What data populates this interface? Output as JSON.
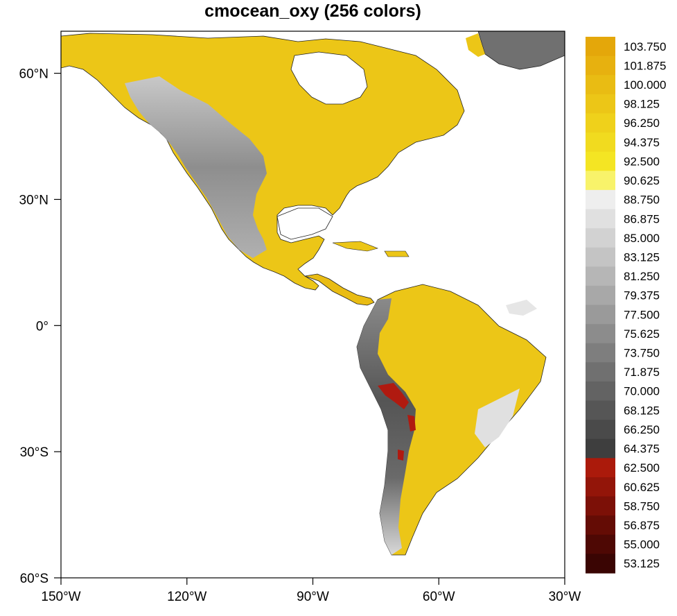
{
  "title": "cmocean_oxy (256 colors)",
  "map": {
    "projection": "cylindrical equidistant",
    "lon_range": [
      -150,
      -30
    ],
    "lat_range": [
      -60,
      70
    ],
    "x_ticks": [
      {
        "lon": -150,
        "label": "150°W"
      },
      {
        "lon": -120,
        "label": "120°W"
      },
      {
        "lon": -90,
        "label": "90°W"
      },
      {
        "lon": -60,
        "label": "60°W"
      },
      {
        "lon": -30,
        "label": "30°W"
      }
    ],
    "y_ticks": [
      {
        "lat": 60,
        "label": "60°N"
      },
      {
        "lat": 30,
        "label": "30°N"
      },
      {
        "lat": 0,
        "label": "0°"
      },
      {
        "lat": -30,
        "label": "30°S"
      },
      {
        "lat": -60,
        "label": "60°S"
      }
    ]
  },
  "colorbar": {
    "labels": [
      "103.750",
      "101.875",
      "100.000",
      "98.125",
      "96.250",
      "94.375",
      "92.500",
      "90.625",
      "88.750",
      "86.875",
      "85.000",
      "83.125",
      "81.250",
      "79.375",
      "77.500",
      "75.625",
      "73.750",
      "71.875",
      "70.000",
      "68.125",
      "66.250",
      "64.375",
      "62.500",
      "60.625",
      "58.750",
      "56.875",
      "55.000",
      "53.125"
    ],
    "colors": [
      "#e4a70a",
      "#e7b10f",
      "#e9bc13",
      "#ecc617",
      "#efd11b",
      "#f1db1f",
      "#f4e523",
      "#f8f36a",
      "#eeeeee",
      "#e0e0e0",
      "#d2d2d2",
      "#c4c4c4",
      "#b6b6b6",
      "#a8a8a8",
      "#9a9a9a",
      "#8c8c8c",
      "#7e7e7e",
      "#707070",
      "#636363",
      "#565656",
      "#4a4a4a",
      "#3e3e3e",
      "#ab1a0b",
      "#931509",
      "#7c1007",
      "#640c05",
      "#4e0804",
      "#3a0503"
    ]
  },
  "colors": {
    "land_yellow": "#ecc617",
    "mountain_gray": "#8c8c8c",
    "low_red": "#b01a10",
    "ocean": "#ffffff"
  }
}
